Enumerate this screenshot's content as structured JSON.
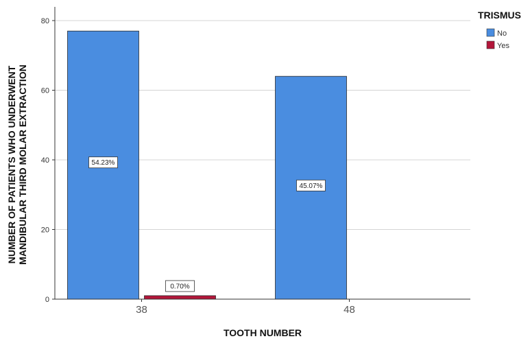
{
  "chart_data": {
    "type": "bar",
    "categories": [
      "38",
      "48"
    ],
    "series": [
      {
        "name": "No",
        "values": [
          77,
          64
        ],
        "labels": [
          "54.23%",
          "45.07%"
        ],
        "color": "#4a8de0"
      },
      {
        "name": "Yes",
        "values": [
          1,
          0
        ],
        "labels": [
          "0.70%",
          ""
        ],
        "color": "#b3163a"
      }
    ],
    "xlabel": "TOOTH NUMBER",
    "ylabel_lines": [
      "NUMBER OF PATIENTS WHO UNDERWENT",
      "MANDIBULAR THIRD MOLAR EXTRACTION"
    ],
    "ylim": [
      0,
      80
    ],
    "yticks": [
      "0",
      "20",
      "40",
      "60",
      "80"
    ],
    "legend_title": "TRISMUS",
    "legend_position": "top-right",
    "grid": true
  }
}
